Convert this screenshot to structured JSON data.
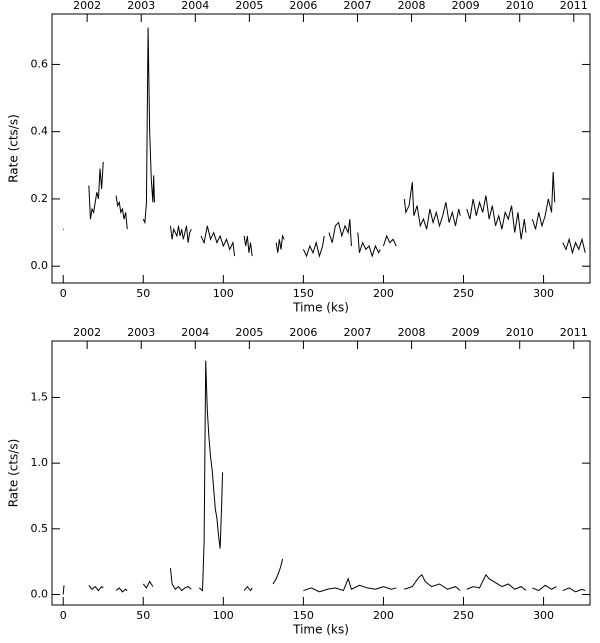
{
  "chart_data": [
    {
      "type": "line",
      "x_label": "Time (ks)",
      "y_label": "Rate (cts/s)",
      "color": "#000000",
      "xlim": [
        -7,
        329
      ],
      "ylim": [
        -0.05,
        0.75
      ],
      "xticks": [
        0,
        50,
        100,
        150,
        200,
        250,
        300
      ],
      "yticks": [
        {
          "value": 0,
          "label": "0.0"
        },
        0.2,
        0.4,
        0.6
      ],
      "x2lim": [
        2001.35,
        2011.3
      ],
      "x2ticks": [
        2002,
        2003,
        2004,
        2005,
        2006,
        2007,
        2008,
        2009,
        2010,
        2011
      ],
      "x": [
        0,
        0.5,
        null,
        16,
        17,
        18,
        19,
        20,
        21,
        22,
        23,
        24,
        25,
        null,
        33,
        34,
        35,
        36,
        37,
        38,
        39,
        40,
        null,
        50,
        51,
        52,
        53,
        54,
        55,
        56,
        56.5,
        57,
        null,
        67,
        68,
        69,
        70,
        71,
        72,
        73,
        74,
        75,
        76,
        77,
        78,
        79,
        80,
        null,
        86,
        88,
        90,
        92,
        94,
        96,
        98,
        100,
        102,
        104,
        106,
        107,
        null,
        113,
        114,
        115,
        116,
        117,
        118,
        null,
        133,
        134,
        135,
        136,
        137,
        138,
        null,
        150,
        152,
        154,
        156,
        158,
        160,
        162,
        163,
        null,
        166,
        168,
        170,
        172,
        174,
        176,
        178,
        179,
        180,
        null,
        184,
        185,
        187,
        189,
        191,
        193,
        195,
        197,
        198,
        null,
        200,
        202,
        204,
        206,
        208,
        null,
        213,
        214,
        216,
        218,
        219,
        221,
        223,
        225,
        227,
        229,
        231,
        233,
        235,
        237,
        239,
        241,
        243,
        245,
        247,
        248,
        null,
        252,
        254,
        256,
        258,
        260,
        262,
        264,
        266,
        268,
        270,
        272,
        274,
        276,
        278,
        280,
        282,
        284,
        286,
        288,
        289,
        null,
        293,
        295,
        297,
        299,
        301,
        303,
        305,
        306,
        307,
        null,
        312,
        314,
        316,
        318,
        320,
        322,
        324,
        326
      ],
      "values": [
        0.11,
        0.11,
        null,
        0.24,
        0.14,
        0.17,
        0.16,
        0.19,
        0.22,
        0.2,
        0.29,
        0.23,
        0.31,
        null,
        0.21,
        0.18,
        0.19,
        0.16,
        0.17,
        0.14,
        0.16,
        0.11,
        null,
        0.14,
        0.13,
        0.19,
        0.71,
        0.4,
        0.26,
        0.19,
        0.27,
        0.19,
        null,
        0.12,
        0.08,
        0.11,
        0.1,
        0.09,
        0.12,
        0.09,
        0.11,
        0.08,
        0.1,
        0.12,
        0.07,
        0.1,
        0.11,
        null,
        0.09,
        0.07,
        0.12,
        0.08,
        0.1,
        0.07,
        0.09,
        0.06,
        0.08,
        0.05,
        0.07,
        0.03,
        null,
        0.09,
        0.06,
        0.09,
        0.04,
        0.07,
        0.03,
        null,
        0.07,
        0.04,
        0.08,
        0.05,
        0.09,
        0.08,
        null,
        0.05,
        0.03,
        0.06,
        0.04,
        0.07,
        0.03,
        0.06,
        0.09,
        null,
        0.1,
        0.07,
        0.12,
        0.13,
        0.09,
        0.12,
        0.1,
        0.14,
        0.06,
        null,
        0.1,
        0.04,
        0.07,
        0.05,
        0.06,
        0.03,
        0.06,
        0.04,
        0.05,
        null,
        0.06,
        0.09,
        0.07,
        0.08,
        0.06,
        null,
        0.2,
        0.16,
        0.18,
        0.25,
        0.15,
        0.18,
        0.12,
        0.14,
        0.11,
        0.17,
        0.13,
        0.16,
        0.12,
        0.15,
        0.19,
        0.13,
        0.16,
        0.12,
        0.17,
        0.15,
        null,
        0.17,
        0.14,
        0.2,
        0.15,
        0.19,
        0.16,
        0.21,
        0.14,
        0.18,
        0.12,
        0.15,
        0.11,
        0.16,
        0.14,
        0.18,
        0.1,
        0.16,
        0.08,
        0.14,
        0.1,
        null,
        0.14,
        0.11,
        0.16,
        0.12,
        0.15,
        0.2,
        0.16,
        0.28,
        0.19,
        null,
        0.07,
        0.05,
        0.08,
        0.04,
        0.07,
        0.05,
        0.08,
        0.04
      ]
    },
    {
      "type": "line",
      "x_label": "Time (ks)",
      "y_label": "Rate (cts/s)",
      "color": "#000000",
      "xlim": [
        -7,
        329
      ],
      "ylim": [
        -0.08,
        1.93
      ],
      "xticks": [
        0,
        50,
        100,
        150,
        200,
        250,
        300
      ],
      "yticks": [
        {
          "value": 0,
          "label": "0.0"
        },
        0.5,
        {
          "value": 1,
          "label": "1.0"
        },
        1.5
      ],
      "x2lim": [
        2001.35,
        2011.3
      ],
      "x2ticks": [
        2002,
        2003,
        2004,
        2005,
        2006,
        2007,
        2008,
        2009,
        2010,
        2011
      ],
      "x": [
        0,
        0.5,
        null,
        16,
        18,
        20,
        22,
        24,
        25,
        null,
        33,
        35,
        37,
        39,
        40,
        null,
        50,
        52,
        54,
        56,
        null,
        67,
        68,
        70,
        72,
        74,
        76,
        78,
        80,
        null,
        85,
        87,
        88,
        89,
        90,
        91,
        92,
        93,
        94,
        95,
        96,
        97,
        98,
        99,
        99.5,
        null,
        113,
        115,
        117,
        118,
        null,
        131,
        133,
        135,
        136,
        137,
        null,
        150,
        155,
        160,
        165,
        170,
        175,
        178,
        180,
        185,
        190,
        195,
        200,
        205,
        208,
        null,
        213,
        218,
        222,
        224,
        226,
        230,
        235,
        240,
        245,
        248,
        null,
        252,
        256,
        260,
        264,
        266,
        270,
        274,
        278,
        282,
        286,
        289,
        null,
        293,
        297,
        301,
        305,
        308,
        null,
        312,
        316,
        320,
        324,
        326
      ],
      "values": [
        0.0,
        0.07,
        null,
        0.07,
        0.04,
        0.06,
        0.03,
        0.06,
        0.05,
        null,
        0.03,
        0.05,
        0.02,
        0.04,
        0.03,
        null,
        0.08,
        0.05,
        0.1,
        0.06,
        null,
        0.2,
        0.08,
        0.04,
        0.06,
        0.03,
        0.05,
        0.06,
        0.04,
        null,
        0.05,
        0.03,
        0.4,
        1.78,
        1.4,
        1.2,
        1.05,
        0.95,
        0.8,
        0.65,
        0.58,
        0.45,
        0.35,
        0.7,
        0.93,
        null,
        0.03,
        0.06,
        0.03,
        0.05,
        null,
        0.08,
        0.12,
        0.18,
        0.22,
        0.27,
        null,
        0.03,
        0.05,
        0.02,
        0.04,
        0.05,
        0.03,
        0.12,
        0.04,
        0.07,
        0.05,
        0.04,
        0.06,
        0.04,
        0.05,
        null,
        0.04,
        0.06,
        0.13,
        0.15,
        0.1,
        0.06,
        0.08,
        0.04,
        0.06,
        0.03,
        null,
        0.04,
        0.06,
        0.05,
        0.15,
        0.12,
        0.09,
        0.06,
        0.08,
        0.04,
        0.06,
        0.03,
        null,
        0.05,
        0.03,
        0.07,
        0.04,
        0.06,
        null,
        0.03,
        0.05,
        0.02,
        0.04,
        0.03
      ]
    }
  ]
}
